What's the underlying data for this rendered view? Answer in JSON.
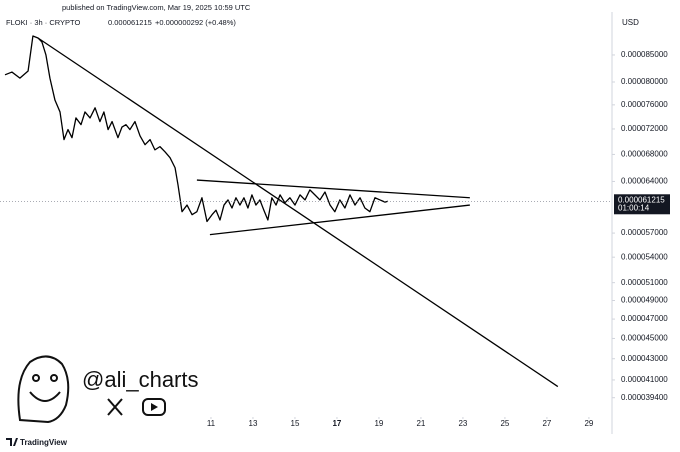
{
  "chart_data": {
    "type": "line",
    "title": "FLOKI · 3h · CRYPTO",
    "published": "published on TradingView.com, Mar 19, 2025 10:59 UTC",
    "change": "+0.000000292 (+0.48%)",
    "currency": "USD",
    "watermark": "@ali_charts",
    "brand": "TradingView",
    "last_price": {
      "value": 6.1215e-05,
      "label": "0.000061215"
    },
    "countdown": "01:00:14",
    "log_scale": true,
    "color": "#000000",
    "xlim": [
      0.952,
      30.1
    ],
    "ylim": [
      3.79e-05,
      9.36e-05
    ],
    "xticks": [
      11,
      13,
      15,
      17,
      19,
      21,
      23,
      25,
      27,
      29
    ],
    "yticks": [
      {
        "value": 8.5e-05,
        "label": "0.000085000"
      },
      {
        "value": 8e-05,
        "label": "0.000080000"
      },
      {
        "value": 7.6e-05,
        "label": "0.000076000"
      },
      {
        "value": 7.2e-05,
        "label": "0.000072000"
      },
      {
        "value": 6.8e-05,
        "label": "0.000068000"
      },
      {
        "value": 6.4e-05,
        "label": "0.000064000"
      },
      {
        "value": 5.7e-05,
        "label": "0.000057000"
      },
      {
        "value": 5.4e-05,
        "label": "0.000054000"
      },
      {
        "value": 5.1e-05,
        "label": "0.000051000"
      },
      {
        "value": 4.9e-05,
        "label": "0.000049000"
      },
      {
        "value": 4.7e-05,
        "label": "0.000047000"
      },
      {
        "value": 4.5e-05,
        "label": "0.000045000"
      },
      {
        "value": 4.3e-05,
        "label": "0.000043000"
      },
      {
        "value": 4.1e-05,
        "label": "0.000041000"
      },
      {
        "value": 3.94e-05,
        "label": "0.000039400"
      }
    ],
    "x": [
      1.19,
      1.52,
      1.9,
      2.29,
      2.52,
      2.76,
      2.95,
      3.14,
      3.33,
      3.57,
      3.81,
      4.0,
      4.19,
      4.38,
      4.57,
      4.81,
      5.0,
      5.24,
      5.48,
      5.71,
      5.9,
      6.1,
      6.29,
      6.57,
      6.76,
      6.95,
      7.14,
      7.38,
      7.62,
      7.86,
      8.1,
      8.33,
      8.57,
      8.81,
      9.05,
      9.29,
      9.43,
      9.62,
      9.86,
      10.1,
      10.33,
      10.57,
      10.81,
      11.05,
      11.24,
      11.43,
      11.62,
      11.81,
      12.0,
      12.19,
      12.38,
      12.57,
      12.76,
      12.95,
      13.14,
      13.33,
      13.52,
      13.71,
      13.9,
      14.1,
      14.29,
      14.52,
      14.76,
      15.0,
      15.24,
      15.48,
      15.71,
      15.95,
      16.19,
      16.43,
      16.67,
      16.9,
      17.14,
      17.38,
      17.62,
      17.86,
      18.1,
      18.33,
      18.57,
      18.81,
      19.05,
      19.29,
      19.43
    ],
    "values": [
      8.13e-05,
      8.18e-05,
      8.07e-05,
      8.2e-05,
      8.87e-05,
      8.83e-05,
      8.75e-05,
      8.5e-05,
      8.07e-05,
      7.68e-05,
      7.48e-05,
      7.03e-05,
      7.19e-05,
      7.06e-05,
      7.38e-05,
      7.27e-05,
      7.48e-05,
      7.38e-05,
      7.55e-05,
      7.32e-05,
      7.48e-05,
      7.19e-05,
      7.32e-05,
      7.06e-05,
      7.23e-05,
      7.27e-05,
      7.19e-05,
      7.32e-05,
      7.09e-05,
      6.95e-05,
      7.03e-05,
      6.87e-05,
      6.92e-05,
      6.84e-05,
      6.75e-05,
      6.6e-05,
      6.35e-05,
      5.98e-05,
      6.07e-05,
      5.94e-05,
      5.98e-05,
      6.17e-05,
      5.85e-05,
      5.94e-05,
      6e-05,
      5.87e-05,
      6.07e-05,
      6.14e-05,
      6.03e-05,
      6.17e-05,
      6.07e-05,
      6.17e-05,
      6.03e-05,
      6.21e-05,
      6.07e-05,
      6.14e-05,
      6e-05,
      5.87e-05,
      6.17e-05,
      6.07e-05,
      6.21e-05,
      6.1e-05,
      6.17e-05,
      6.07e-05,
      6.21e-05,
      6.14e-05,
      6.28e-05,
      6.21e-05,
      6.14e-05,
      6.25e-05,
      6.07e-05,
      5.98e-05,
      6.14e-05,
      6.03e-05,
      6.21e-05,
      6.07e-05,
      6.17e-05,
      6.03e-05,
      5.98e-05,
      6.17e-05,
      6.14e-05,
      6.11e-05,
      6.1215e-05
    ],
    "trendlines": [
      {
        "x": [
          10.33,
          23.33
        ],
        "y": [
          6.42e-05,
          6.17e-05
        ]
      },
      {
        "x": [
          10.95,
          23.33
        ],
        "y": [
          5.68e-05,
          6.07e-05
        ]
      },
      {
        "x": [
          2.76,
          27.52
        ],
        "y": [
          8.83e-05,
          4.04e-05
        ]
      }
    ]
  }
}
